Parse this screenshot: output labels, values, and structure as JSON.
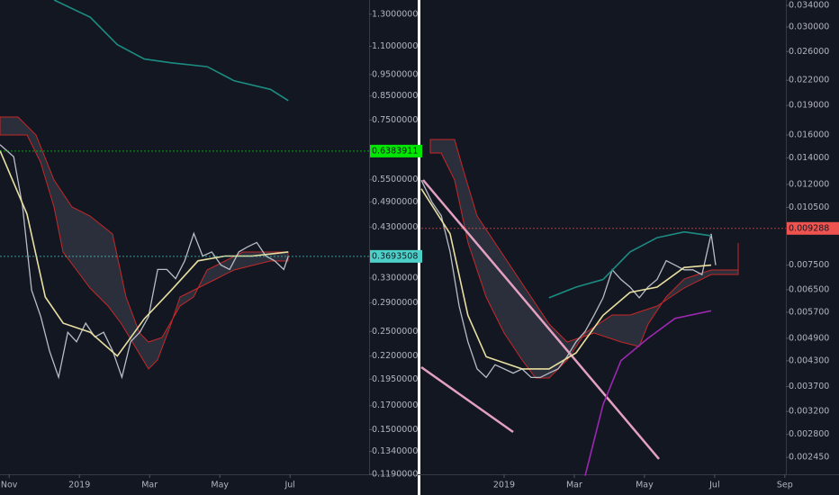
{
  "chart_data": [
    {
      "type": "line",
      "log_scale": true,
      "xlim": [
        -0.26,
        10.25
      ],
      "ylim": [
        0.119,
        1.4
      ],
      "xticks": [
        {
          "value": 0,
          "label": "Nov"
        },
        {
          "value": 2,
          "label": "2019"
        },
        {
          "value": 4,
          "label": "Mar"
        },
        {
          "value": 6,
          "label": "May"
        },
        {
          "value": 8,
          "label": "Jul"
        }
      ],
      "yticks": [
        {
          "value": 1.3,
          "label": "1.3000000"
        },
        {
          "value": 1.1,
          "label": "1.1000000"
        },
        {
          "value": 0.95,
          "label": "0.9500000"
        },
        {
          "value": 0.85,
          "label": "0.8500000"
        },
        {
          "value": 0.75,
          "label": "0.7500000"
        },
        {
          "value": 0.55,
          "label": "0.5500000"
        },
        {
          "value": 0.49,
          "label": "0.4900000"
        },
        {
          "value": 0.43,
          "label": "0.4300000"
        },
        {
          "value": 0.33,
          "label": "0.3300000"
        },
        {
          "value": 0.29,
          "label": "0.2900000"
        },
        {
          "value": 0.25,
          "label": "0.2500000"
        },
        {
          "value": 0.22,
          "label": "0.2200000"
        },
        {
          "value": 0.195,
          "label": "0.1950000"
        },
        {
          "value": 0.17,
          "label": "0.1700000"
        },
        {
          "value": 0.15,
          "label": "0.1500000"
        },
        {
          "value": 0.134,
          "label": "0.1340000"
        },
        {
          "value": 0.119,
          "label": "0.1190000"
        }
      ],
      "price_tags": [
        {
          "value": 0.6383911,
          "color": "#00e600"
        },
        {
          "value": 0.3693508,
          "color": "#4dd0c8"
        }
      ],
      "series": [
        {
          "color": "#b8bcc6",
          "x": [
            -0.26,
            0.13,
            0.38,
            0.64,
            0.9,
            1.15,
            1.41,
            1.67,
            1.92,
            2.18,
            2.44,
            2.69,
            2.95,
            3.21,
            3.46,
            3.72,
            3.97,
            4.23,
            4.49,
            4.74,
            5.0,
            5.26,
            5.51,
            5.77,
            6.03,
            6.28,
            6.54,
            6.79,
            7.05,
            7.31,
            7.56,
            7.82,
            7.95
          ],
          "values": [
            0.66,
            0.62,
            0.48,
            0.31,
            0.27,
            0.226,
            0.197,
            0.249,
            0.237,
            0.261,
            0.243,
            0.249,
            0.226,
            0.197,
            0.237,
            0.249,
            0.27,
            0.345,
            0.345,
            0.329,
            0.361,
            0.416,
            0.37,
            0.378,
            0.353,
            0.345,
            0.378,
            0.388,
            0.397,
            0.37,
            0.361,
            0.345,
            0.37
          ]
        },
        {
          "color": "#e8dfa0",
          "x": [
            -0.26,
            0.51,
            1.03,
            1.54,
            2.31,
            3.08,
            3.85,
            4.62,
            5.38,
            6.15,
            6.92,
            7.95
          ],
          "values": [
            0.64,
            0.46,
            0.299,
            0.261,
            0.249,
            0.22,
            0.267,
            0.31,
            0.361,
            0.37,
            0.37,
            0.378
          ]
        },
        {
          "color": "#1c8c82",
          "x": [
            1.28,
            2.31,
            3.08,
            3.85,
            4.62,
            5.64,
            6.41,
            7.44,
            7.95
          ],
          "values": [
            1.4,
            1.28,
            1.11,
            1.03,
            1.01,
            0.99,
            0.92,
            0.88,
            0.83
          ]
        }
      ]
    },
    {
      "type": "line",
      "log_scale": true,
      "xlim": [
        -0.36,
        10.03
      ],
      "ylim": [
        0.00222,
        0.0351
      ],
      "xticks": [
        {
          "value": 2,
          "label": "2019"
        },
        {
          "value": 4,
          "label": "Mar"
        },
        {
          "value": 6,
          "label": "May"
        },
        {
          "value": 8,
          "label": "Jul"
        },
        {
          "value": 10,
          "label": "Sep"
        }
      ],
      "yticks": [
        {
          "value": 0.034,
          "label": "0.034000"
        },
        {
          "value": 0.03,
          "label": "0.030000"
        },
        {
          "value": 0.026,
          "label": "0.026000"
        },
        {
          "value": 0.022,
          "label": "0.022000"
        },
        {
          "value": 0.019,
          "label": "0.019000"
        },
        {
          "value": 0.016,
          "label": "0.016000"
        },
        {
          "value": 0.014,
          "label": "0.014000"
        },
        {
          "value": 0.012,
          "label": "0.012000"
        },
        {
          "value": 0.0105,
          "label": "0.010500"
        },
        {
          "value": 0.0075,
          "label": "0.007500"
        },
        {
          "value": 0.0065,
          "label": "0.006500"
        },
        {
          "value": 0.0057,
          "label": "0.005700"
        },
        {
          "value": 0.0049,
          "label": "0.004900"
        },
        {
          "value": 0.0043,
          "label": "0.004300"
        },
        {
          "value": 0.0037,
          "label": "0.003700"
        },
        {
          "value": 0.0032,
          "label": "0.003200"
        },
        {
          "value": 0.0028,
          "label": "0.002800"
        },
        {
          "value": 0.00245,
          "label": "0.002450"
        }
      ],
      "price_tags": [
        {
          "value": 0.009288,
          "color": "#ef5350"
        }
      ],
      "series": [
        {
          "color": "#b8bcc6",
          "x": [
            -0.36,
            -0.05,
            0.21,
            0.46,
            0.72,
            0.97,
            1.23,
            1.49,
            1.74,
            2,
            2.26,
            2.51,
            2.77,
            3.03,
            3.28,
            3.54,
            3.79,
            4.05,
            4.31,
            4.56,
            4.82,
            5.08,
            5.33,
            5.59,
            5.85,
            6.1,
            6.36,
            6.62,
            6.87,
            7.13,
            7.38,
            7.64,
            7.9,
            8.03
          ],
          "values": [
            0.0123,
            0.0108,
            0.01,
            0.0081,
            0.0059,
            0.0048,
            0.0041,
            0.0039,
            0.0042,
            0.0041,
            0.004,
            0.0041,
            0.0039,
            0.0039,
            0.004,
            0.0041,
            0.0044,
            0.0048,
            0.0051,
            0.0056,
            0.0062,
            0.0073,
            0.0069,
            0.0066,
            0.0062,
            0.0066,
            0.0069,
            0.0077,
            0.0075,
            0.0073,
            0.0073,
            0.0071,
            0.009,
            0.0075
          ]
        },
        {
          "color": "#e8dfa0",
          "x": [
            -0.36,
            0.46,
            0.97,
            1.49,
            2.51,
            3.28,
            4.05,
            4.82,
            5.59,
            6.36,
            7.13,
            7.9
          ],
          "values": [
            0.0117,
            0.009,
            0.0056,
            0.0044,
            0.0041,
            0.0041,
            0.0045,
            0.0056,
            0.0064,
            0.0066,
            0.0074,
            0.0075
          ]
        },
        {
          "color": "#1c8c82",
          "x": [
            3.28,
            4.05,
            4.82,
            5.59,
            6.36,
            7.13,
            7.9
          ],
          "values": [
            0.0062,
            0.0066,
            0.0069,
            0.0081,
            0.0088,
            0.0091,
            0.0089
          ]
        },
        {
          "color": "#9c27b0",
          "x": [
            4.31,
            4.82,
            5.33,
            6.1,
            6.87,
            7.9
          ],
          "values": [
            0.0022,
            0.00333,
            0.0043,
            0.0049,
            0.0055,
            0.00575
          ]
        }
      ]
    }
  ]
}
